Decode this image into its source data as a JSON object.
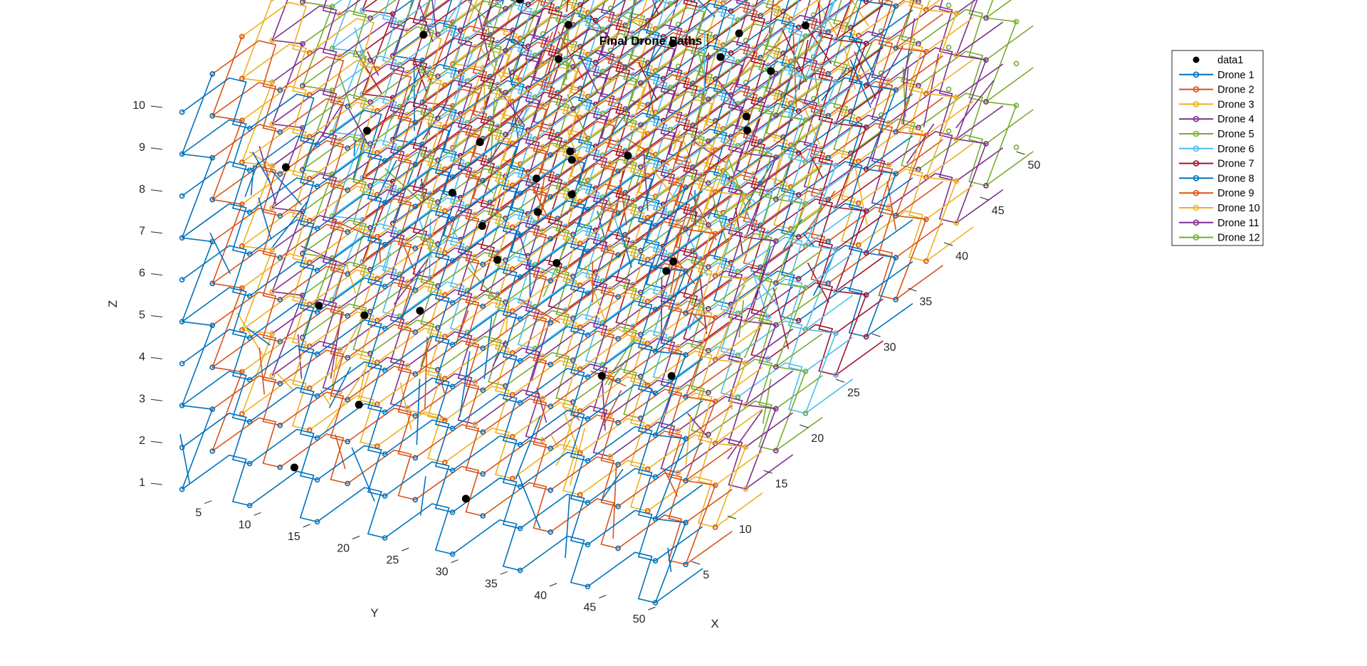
{
  "chart_data": {
    "type": "line",
    "title": "Final Drone Paths",
    "xlabel": "X",
    "ylabel": "Y",
    "zlabel": "Z",
    "xlim": [
      0,
      50
    ],
    "ylim": [
      0,
      50
    ],
    "zlim": [
      1,
      10
    ],
    "x_ticks": [
      "5",
      "10",
      "15",
      "20",
      "25",
      "30",
      "35",
      "40",
      "45",
      "50"
    ],
    "y_ticks": [
      "5",
      "10",
      "15",
      "20",
      "25",
      "30",
      "35",
      "40",
      "45",
      "50"
    ],
    "z_ticks": [
      "1",
      "2",
      "3",
      "4",
      "5",
      "6",
      "7",
      "8",
      "9",
      "10"
    ],
    "legend_position": "top-right",
    "scatter": {
      "name": "data1",
      "color": "#000000",
      "points": [
        [
          1.8,
          40.2,
          9.8
        ],
        [
          8.7,
          31.7,
          7.4
        ],
        [
          7.9,
          34.2,
          6.5
        ],
        [
          2.1,
          36.4,
          9.9
        ],
        [
          22.4,
          40.2,
          8.6
        ],
        [
          5.5,
          22.1,
          5.2
        ],
        [
          20.1,
          44.6,
          7.6
        ],
        [
          14.4,
          48.7,
          9.4
        ],
        [
          29.3,
          45.3,
          9.2
        ],
        [
          38.4,
          46.8,
          9.8
        ],
        [
          3.6,
          17.3,
          3.1
        ],
        [
          26.6,
          14.5,
          1.4
        ],
        [
          37.3,
          34.4,
          4.7
        ],
        [
          16.5,
          3.8,
          1.9
        ],
        [
          48.2,
          23.2,
          2.6
        ],
        [
          11.2,
          12.3,
          3.3
        ],
        [
          40.8,
          21.9,
          3.9
        ],
        [
          4.5,
          10.1,
          1.0
        ],
        [
          24.8,
          2.6,
          4.2
        ],
        [
          35.1,
          29.5,
          7.2
        ],
        [
          45.6,
          7.8,
          2.5
        ],
        [
          12.8,
          35.2,
          2.8
        ],
        [
          19.3,
          27.4,
          6.1
        ],
        [
          31.4,
          17.2,
          5.3
        ],
        [
          9.6,
          5.5,
          6.8
        ],
        [
          42.9,
          39.8,
          8.1
        ],
        [
          6.2,
          47.1,
          4.9
        ],
        [
          28.7,
          8.4,
          2.2
        ],
        [
          17.4,
          19.7,
          4.5
        ],
        [
          33.9,
          3.2,
          6.3
        ],
        [
          47.3,
          30.6,
          3.4
        ],
        [
          2.7,
          28.8,
          1.7
        ],
        [
          14.1,
          41.5,
          5.6
        ],
        [
          38.6,
          13.1,
          1.3
        ],
        [
          23.5,
          33.9,
          2.9
        ],
        [
          44.2,
          45.7,
          7.7
        ],
        [
          10.4,
          24.6,
          8.3
        ],
        [
          30.2,
          25.1,
          3.7
        ],
        [
          36.8,
          9.3,
          5.1
        ],
        [
          20.6,
          11.4,
          7.9
        ]
      ]
    },
    "series": [
      {
        "name": "Drone 1",
        "color": "#0072BD",
        "x_range": [
          0,
          4.2
        ]
      },
      {
        "name": "Drone 2",
        "color": "#D95319",
        "x_range": [
          4.2,
          8.3
        ]
      },
      {
        "name": "Drone 3",
        "color": "#EDB120",
        "x_range": [
          8.3,
          12.5
        ]
      },
      {
        "name": "Drone 4",
        "color": "#7E2F8E",
        "x_range": [
          12.5,
          16.7
        ]
      },
      {
        "name": "Drone 5",
        "color": "#77AC30",
        "x_range": [
          16.7,
          20.8
        ]
      },
      {
        "name": "Drone 6",
        "color": "#4DBEEE",
        "x_range": [
          20.8,
          25.0
        ]
      },
      {
        "name": "Drone 7",
        "color": "#A2142F",
        "x_range": [
          25.0,
          29.2
        ]
      },
      {
        "name": "Drone 8",
        "color": "#0072BD",
        "x_range": [
          29.2,
          33.3
        ]
      },
      {
        "name": "Drone 9",
        "color": "#D95319",
        "x_range": [
          33.3,
          37.5
        ]
      },
      {
        "name": "Drone 10",
        "color": "#EDB120",
        "x_range": [
          37.5,
          41.7
        ]
      },
      {
        "name": "Drone 11",
        "color": "#7E2F8E",
        "x_range": [
          41.7,
          45.8
        ]
      },
      {
        "name": "Drone 12",
        "color": "#77AC30",
        "x_range": [
          45.8,
          50.0
        ]
      }
    ]
  }
}
